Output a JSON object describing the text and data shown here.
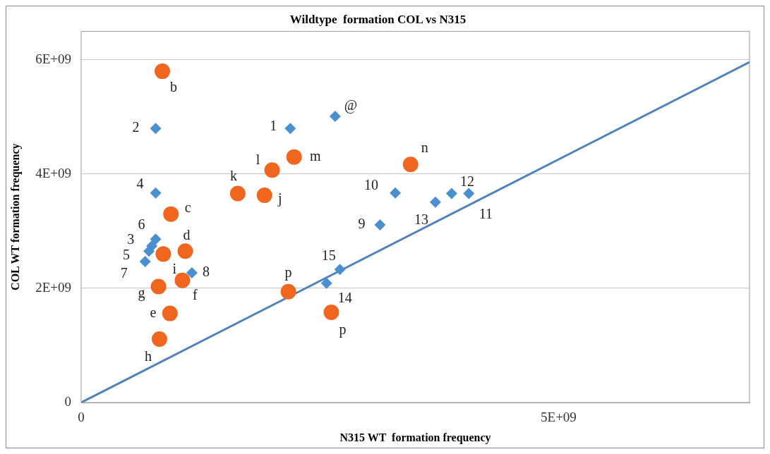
{
  "chart_data": {
    "type": "scatter",
    "title": "Wildtype  formation COL vs N315",
    "xlabel": "N315 WT  formation frequency",
    "ylabel": "COL WT formation frequency",
    "xlim": [
      0,
      7000000000
    ],
    "ylim": [
      0,
      6500000000
    ],
    "xticks": [
      {
        "value": 0,
        "label": "0"
      },
      {
        "value": 5000000000,
        "label": "5E+09"
      }
    ],
    "yticks": [
      {
        "value": 0,
        "label": "0"
      },
      {
        "value": 2000000000,
        "label": "2E+09"
      },
      {
        "value": 4000000000,
        "label": "4E+09"
      },
      {
        "value": 6000000000,
        "label": "6E+09"
      }
    ],
    "grid": "y",
    "legend": false,
    "series": [
      {
        "color": "#4a8fd0",
        "marker": "diamond",
        "x": [
          780000000,
          2190000000,
          2660000000,
          780000000,
          3290000000,
          3880000000,
          4060000000,
          3710000000,
          3130000000,
          780000000,
          740000000,
          710000000,
          670000000,
          1160000000,
          2710000000,
          2570000000
        ],
        "values": [
          4800000000,
          4800000000,
          5010000000,
          3670000000,
          3670000000,
          3660000000,
          3660000000,
          3510000000,
          3110000000,
          2860000000,
          2740000000,
          2650000000,
          2470000000,
          2270000000,
          2330000000,
          2090000000
        ]
      },
      {
        "color": "#f0661e",
        "marker": "circle",
        "x": [
          850000000,
          940000000,
          1640000000,
          1920000000,
          2000000000,
          2230000000,
          3450000000,
          1090000000,
          860000000,
          1060000000,
          810000000,
          930000000,
          820000000,
          2170000000,
          2620000000
        ],
        "values": [
          5800000000,
          3300000000,
          3660000000,
          3630000000,
          4070000000,
          4300000000,
          4170000000,
          2650000000,
          2600000000,
          2140000000,
          2030000000,
          1560000000,
          1110000000,
          1940000000,
          1580000000
        ]
      },
      {
        "type": "line",
        "color": "#4f81bd",
        "marker": "none",
        "x": [
          0,
          7000000000
        ],
        "values": [
          0,
          5960000000
        ]
      }
    ],
    "annotations": [
      {
        "text": "2",
        "x": 780000000,
        "y": 4800000000
      },
      {
        "text": "1",
        "x": 2190000000,
        "y": 4800000000
      },
      {
        "text": "@",
        "x": 2660000000,
        "y": 5010000000
      },
      {
        "text": "4",
        "x": 780000000,
        "y": 3670000000
      },
      {
        "text": "10",
        "x": 3290000000,
        "y": 3670000000
      },
      {
        "text": "12",
        "x": 3880000000,
        "y": 3660000000
      },
      {
        "text": "11",
        "x": 4060000000,
        "y": 3660000000
      },
      {
        "text": "13",
        "x": 3710000000,
        "y": 3510000000
      },
      {
        "text": "9",
        "x": 3130000000,
        "y": 3110000000
      },
      {
        "text": "6",
        "x": 780000000,
        "y": 2860000000
      },
      {
        "text": "3",
        "x": 740000000,
        "y": 2740000000
      },
      {
        "text": "5",
        "x": 710000000,
        "y": 2650000000
      },
      {
        "text": "7",
        "x": 670000000,
        "y": 2470000000
      },
      {
        "text": "8",
        "x": 1160000000,
        "y": 2270000000
      },
      {
        "text": "15",
        "x": 2710000000,
        "y": 2330000000
      },
      {
        "text": "14",
        "x": 2570000000,
        "y": 2090000000
      },
      {
        "text": "b",
        "x": 850000000,
        "y": 5800000000
      },
      {
        "text": "c",
        "x": 940000000,
        "y": 3300000000
      },
      {
        "text": "k",
        "x": 1640000000,
        "y": 3660000000
      },
      {
        "text": "j",
        "x": 1920000000,
        "y": 3630000000
      },
      {
        "text": "l",
        "x": 2000000000,
        "y": 4070000000
      },
      {
        "text": "m",
        "x": 2230000000,
        "y": 4300000000
      },
      {
        "text": "n",
        "x": 3450000000,
        "y": 4170000000
      },
      {
        "text": "d",
        "x": 1090000000,
        "y": 2650000000
      },
      {
        "text": "i",
        "x": 860000000,
        "y": 2600000000
      },
      {
        "text": "f",
        "x": 1060000000,
        "y": 2140000000
      },
      {
        "text": "g",
        "x": 810000000,
        "y": 2030000000
      },
      {
        "text": "e",
        "x": 930000000,
        "y": 1560000000
      },
      {
        "text": "h",
        "x": 820000000,
        "y": 1110000000
      },
      {
        "text": "p",
        "x": 2170000000,
        "y": 1940000000
      },
      {
        "text": "p",
        "x": 2620000000,
        "y": 1580000000
      }
    ]
  }
}
